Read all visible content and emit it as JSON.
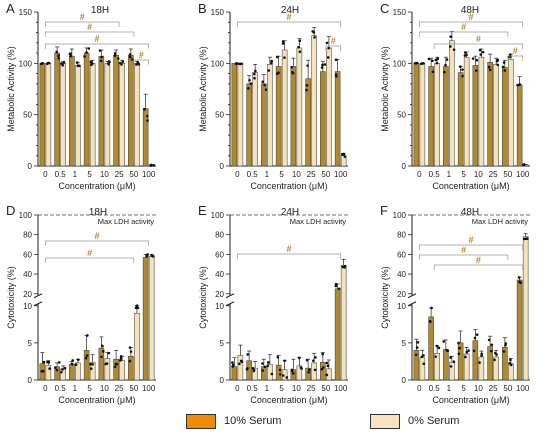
{
  "colors": {
    "serum10": "#b08a2e",
    "serum0": "#f3e2ba",
    "axis": "#222222",
    "marker": "#d86a86",
    "bracket": "#999999"
  },
  "legend": {
    "serum10_label": "10% Serum",
    "serum0_label": "0% Serum",
    "serum10_color": "#f08a00",
    "serum0_color": "#f6e3bf"
  },
  "chart_data": [
    {
      "panel": "A",
      "title": "18H",
      "type": "bar",
      "xlabel": "Concentration (μM)",
      "ylabel": "Metabolic Activity (%)",
      "ylim": [
        0,
        150
      ],
      "yticks": [
        0,
        10,
        20,
        30,
        40,
        50,
        60,
        70,
        80,
        90,
        100,
        110,
        120,
        130,
        140,
        150
      ],
      "categories": [
        "0",
        "0.5",
        "1",
        "5",
        "10",
        "25",
        "50",
        "100"
      ],
      "series": [
        {
          "values": [
            100,
            110,
            107,
            110,
            107,
            108,
            108,
            56
          ]
        },
        {
          "values": [
            100,
            100,
            98,
            100,
            100,
            100,
            100,
            1
          ]
        }
      ],
      "errors": [
        [
          0,
          6,
          7,
          5,
          6,
          5,
          6,
          14
        ],
        [
          0,
          2,
          3,
          3,
          2,
          3,
          2,
          0.5
        ]
      ],
      "annotations": [
        "#",
        "#",
        "#",
        "#"
      ]
    },
    {
      "panel": "B",
      "title": "24H",
      "type": "bar",
      "xlabel": "Concentration (μM)",
      "ylabel": "Metabolic Activity (%)",
      "ylim": [
        0,
        150
      ],
      "yticks": [
        0,
        10,
        20,
        30,
        40,
        50,
        60,
        70,
        80,
        90,
        100,
        110,
        120,
        130,
        140,
        150
      ],
      "categories": [
        "0",
        "0.5",
        "1",
        "5",
        "10",
        "25",
        "50",
        "100"
      ],
      "series": [
        {
          "values": [
            100,
            80,
            80,
            97,
            97,
            85,
            92,
            92
          ]
        },
        {
          "values": [
            100,
            91,
            99,
            113,
            115,
            127,
            115,
            10
          ]
        }
      ],
      "errors": [
        [
          0,
          8,
          9,
          10,
          8,
          18,
          10,
          12
        ],
        [
          0,
          8,
          7,
          9,
          9,
          8,
          11,
          2
        ]
      ],
      "annotations": [
        "#",
        "#"
      ]
    },
    {
      "panel": "C",
      "title": "48H",
      "type": "bar",
      "xlabel": "Concentration (μM)",
      "ylabel": "Metabolic Activity (%)",
      "ylim": [
        0,
        150
      ],
      "yticks": [
        0,
        10,
        20,
        30,
        40,
        50,
        60,
        70,
        80,
        90,
        100,
        110,
        120,
        130,
        140,
        150
      ],
      "categories": [
        "0",
        "0.5",
        "1",
        "5",
        "10",
        "25",
        "50",
        "100"
      ],
      "series": [
        {
          "values": [
            100,
            97,
            97,
            91,
            98,
            101,
            96,
            79
          ]
        },
        {
          "values": [
            100,
            100,
            122,
            106,
            106,
            99,
            104,
            1
          ]
        }
      ],
      "errors": [
        [
          0,
          8,
          9,
          6,
          9,
          8,
          7,
          8
        ],
        [
          0,
          6,
          9,
          5,
          8,
          6,
          5,
          0.5
        ]
      ],
      "annotations": [
        "#",
        "#",
        "#",
        "#"
      ]
    },
    {
      "panel": "D",
      "title": "18H",
      "type": "bar",
      "xlabel": "Concentration (μM)",
      "ylabel": "Cytotoxicity (%)",
      "ylim": [
        0,
        100
      ],
      "axis_break": [
        10,
        20
      ],
      "yticks": [
        0,
        5,
        10,
        20,
        40,
        60,
        80,
        100
      ],
      "categories": [
        "0",
        "0.5",
        "1",
        "5",
        "10",
        "25",
        "50",
        "100"
      ],
      "series": [
        {
          "values": [
            2.2,
            1.8,
            2.1,
            4,
            4.3,
            2.8,
            3.2,
            57
          ]
        },
        {
          "values": [
            2,
            1.5,
            2.3,
            2.4,
            2.9,
            2.6,
            9,
            58
          ]
        }
      ],
      "errors": [
        [
          1.5,
          0.5,
          0.4,
          2,
          1.5,
          1.2,
          1.2,
          3
        ],
        [
          0.6,
          0.4,
          0.5,
          1,
          0.8,
          0.6,
          1.2,
          2
        ]
      ],
      "annotations": [
        "Max LDH activity",
        "#",
        "#"
      ]
    },
    {
      "panel": "E",
      "title": "24H",
      "type": "bar",
      "xlabel": "Concentration (μM)",
      "ylabel": "Cytotoxicity (%)",
      "ylim": [
        0,
        100
      ],
      "axis_break": [
        10,
        20
      ],
      "yticks": [
        0,
        5,
        10,
        20,
        40,
        60,
        80,
        100
      ],
      "categories": [
        "0",
        "0.5",
        "1",
        "5",
        "10",
        "25",
        "50",
        "100"
      ],
      "series": [
        {
          "values": [
            1.8,
            2.6,
            1.8,
            2,
            1.4,
            1.6,
            2.4,
            25
          ]
        },
        {
          "values": [
            3.3,
            1.6,
            2.1,
            1.4,
            1.9,
            2.3,
            1.5,
            49
          ]
        }
      ],
      "errors": [
        [
          1.2,
          1.3,
          1,
          1.3,
          1.4,
          1.2,
          1.3,
          5
        ],
        [
          1.4,
          0.9,
          1.3,
          1.2,
          1.1,
          1.3,
          1.2,
          6
        ]
      ],
      "annotations": [
        "Max LDH activity",
        "#"
      ]
    },
    {
      "panel": "F",
      "title": "48H",
      "type": "bar",
      "xlabel": "Concentration (μM)",
      "ylabel": "Cytotoxicity (%)",
      "ylim": [
        0,
        100
      ],
      "axis_break": [
        10,
        20
      ],
      "yticks": [
        0,
        5,
        10,
        20,
        40,
        60,
        80,
        100
      ],
      "categories": [
        "0",
        "0.5",
        "1",
        "5",
        "10",
        "25",
        "50",
        "100"
      ],
      "series": [
        {
          "values": [
            4,
            8.5,
            4.1,
            5,
            5.3,
            4.5,
            4.4,
            34
          ]
        },
        {
          "values": [
            3,
            3.6,
            2.4,
            3.5,
            3.1,
            3.1,
            2.2,
            78
          ]
        }
      ],
      "errors": [
        [
          1.5,
          1.2,
          1.3,
          1.6,
          1.5,
          1.4,
          1.3,
          3
        ],
        [
          1,
          1,
          0.8,
          0.9,
          0.8,
          0.9,
          0.7,
          3
        ]
      ],
      "annotations": [
        "Max LDH activity",
        "#",
        "#",
        "#"
      ]
    }
  ]
}
